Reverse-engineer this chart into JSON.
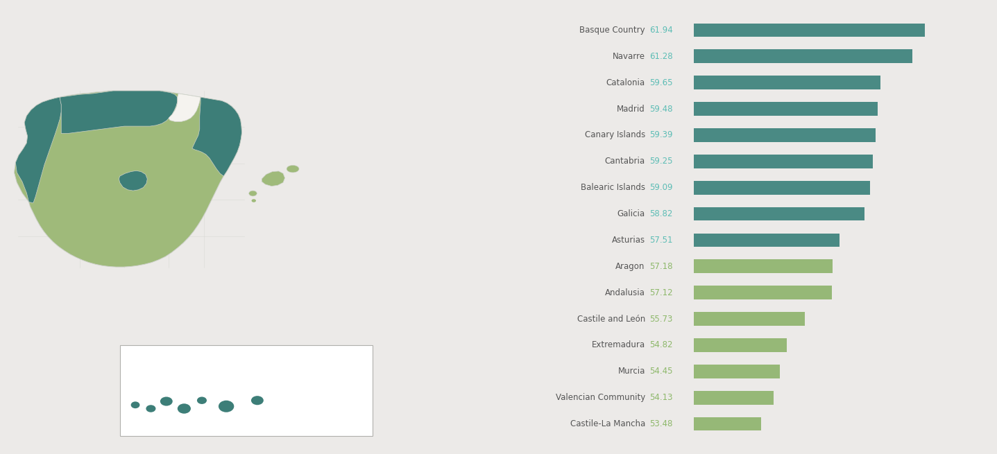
{
  "categories": [
    "Basque Country",
    "Navarre",
    "Catalonia",
    "Madrid",
    "Canary Islands",
    "Cantabria",
    "Balearic Islands",
    "Galicia",
    "Asturias",
    "Aragon",
    "Andalusia",
    "Castile and León",
    "Extremadura",
    "Murcia",
    "Valencian Community",
    "Castile-La Mancha"
  ],
  "values": [
    61.94,
    61.28,
    59.65,
    59.48,
    59.39,
    59.25,
    59.09,
    58.82,
    57.51,
    57.18,
    57.12,
    55.73,
    54.82,
    54.45,
    54.13,
    53.48
  ],
  "dark_color": "#4a8a84",
  "light_color": "#96b877",
  "value_color_dark": "#5dbdb5",
  "value_color_light": "#8db86a",
  "label_color": "#555555",
  "bg_color": "#eceae8",
  "threshold_index": 9,
  "bar_height": 0.52,
  "label_fontsize": 8.5,
  "value_fontsize": 8.5,
  "map_light": "#9fba7a",
  "map_dark": "#3d7e78",
  "map_white": "#f5f3ef",
  "map_border": "#cdd1c9",
  "canary_border": "#b0b0ac"
}
